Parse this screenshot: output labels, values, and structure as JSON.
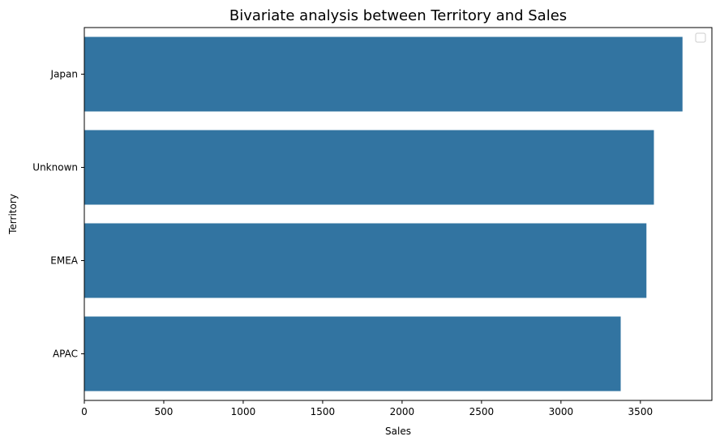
{
  "chart_data": {
    "type": "bar",
    "orientation": "horizontal",
    "title": "Bivariate analysis between Territory and Sales",
    "xlabel": "Sales",
    "ylabel": "Territory",
    "categories": [
      "Japan",
      "Unknown",
      "EMEA",
      "APAC"
    ],
    "values": [
      3765,
      3585,
      3538,
      3376
    ],
    "xlim": [
      0,
      3950
    ],
    "xticks": [
      0,
      500,
      1000,
      1500,
      2000,
      2500,
      3000,
      3500
    ],
    "grid": false,
    "legend": "top-right",
    "bar_color": "#3274a1"
  }
}
